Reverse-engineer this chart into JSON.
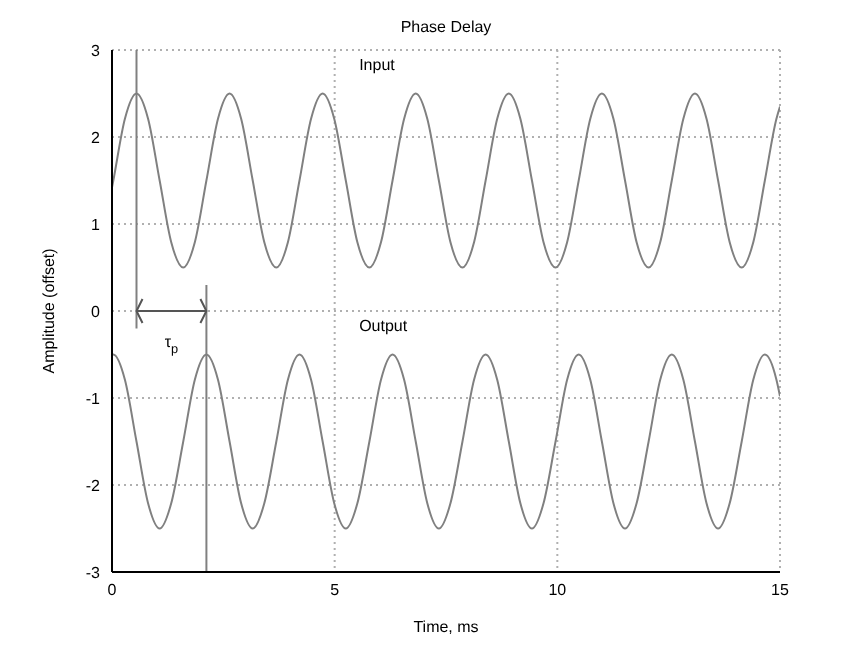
{
  "chart_data": {
    "type": "line",
    "title": "Phase Delay",
    "xlabel": "Time, ms",
    "ylabel": "Amplitude (offset)",
    "x": [
      0,
      0.03,
      0.29,
      0.55,
      0.81,
      1.07,
      1.33,
      1.6,
      1.86,
      2.12,
      2.38,
      2.64,
      2.9,
      3.16,
      3.42,
      3.69,
      3.95,
      4.21,
      4.47,
      4.73,
      4.99,
      5.25,
      5.51,
      5.78,
      6.04,
      6.3,
      6.56,
      6.82,
      7.08,
      7.34,
      7.6,
      7.87,
      8.13,
      8.39,
      8.65,
      8.91,
      9.17,
      9.43,
      9.69,
      9.96,
      10.22,
      10.48,
      10.74,
      11,
      11.26,
      11.52,
      11.78,
      12.05,
      12.31,
      12.57,
      12.83,
      13.09,
      13.35,
      13.61,
      13.87,
      14.14,
      14.4,
      14.66,
      14.92,
      15
    ],
    "series": [
      {
        "name": "Input",
        "color": "#808080",
        "values": [
          1.42,
          1.5,
          2.21,
          2.5,
          2.21,
          1.5,
          0.79,
          0.5,
          0.79,
          1.5,
          2.21,
          2.5,
          2.21,
          1.5,
          0.79,
          0.5,
          0.79,
          1.5,
          2.21,
          2.5,
          2.21,
          1.5,
          0.79,
          0.5,
          0.79,
          1.5,
          2.21,
          2.5,
          2.21,
          1.5,
          0.79,
          0.5,
          0.79,
          1.5,
          2.21,
          2.5,
          2.21,
          1.5,
          0.79,
          0.5,
          0.79,
          1.5,
          2.21,
          2.5,
          2.21,
          1.5,
          0.79,
          0.5,
          0.79,
          1.5,
          2.21,
          2.5,
          2.21,
          1.5,
          0.79,
          0.5,
          0.79,
          1.5,
          2.21,
          2.35
        ]
      },
      {
        "name": "Output",
        "color": "#808080",
        "values": [
          -0.5,
          -0.5,
          -0.79,
          -1.5,
          -2.21,
          -2.5,
          -2.21,
          -1.5,
          -0.79,
          -0.5,
          -0.79,
          -1.5,
          -2.21,
          -2.5,
          -2.21,
          -1.5,
          -0.79,
          -0.5,
          -0.79,
          -1.5,
          -2.21,
          -2.5,
          -2.21,
          -1.5,
          -0.79,
          -0.5,
          -0.79,
          -1.5,
          -2.21,
          -2.5,
          -2.21,
          -1.5,
          -0.79,
          -0.5,
          -0.79,
          -1.5,
          -2.21,
          -2.5,
          -2.21,
          -1.5,
          -0.79,
          -0.5,
          -0.79,
          -1.5,
          -2.21,
          -2.5,
          -2.21,
          -1.5,
          -0.79,
          -0.5,
          -0.79,
          -1.5,
          -2.21,
          -2.5,
          -2.21,
          -1.5,
          -0.79,
          -0.5,
          -0.79,
          -0.98
        ]
      }
    ],
    "xlim": [
      0,
      15
    ],
    "xticks": [
      0,
      5,
      10,
      15
    ],
    "ylim": [
      -3,
      3
    ],
    "yticks": [
      -3,
      -2,
      -1,
      0,
      1,
      2,
      3
    ],
    "grid": true,
    "marker": "none",
    "line_style": "solid",
    "ref_lines": [
      {
        "axis": "x",
        "value": 0.55,
        "color": "#808080"
      },
      {
        "axis": "x",
        "value": 2.12,
        "color": "#808080"
      }
    ],
    "annotations": [
      "τ$_{p}$"
    ]
  }
}
